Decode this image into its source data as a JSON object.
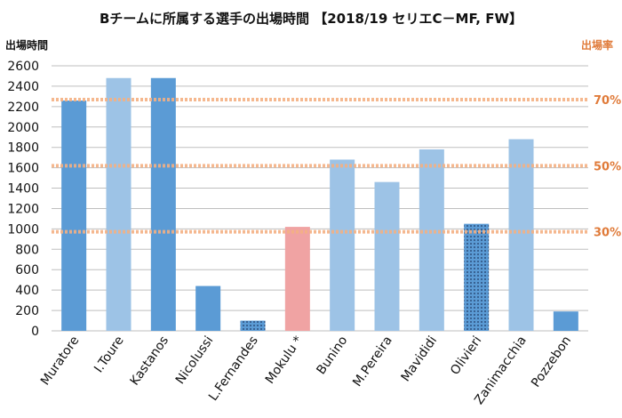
{
  "chart_data": {
    "type": "bar",
    "title": "Bチームに所属する選手の出場時間 【2018/19 セリエC－MF, FW】",
    "ylabel": "出場時間",
    "y2label": "出場率",
    "ylim": [
      0,
      2600
    ],
    "ytick_labels": [
      "0",
      "200",
      "400",
      "600",
      "800",
      "1000",
      "1200",
      "1400",
      "1600",
      "1800",
      "2000",
      "2200",
      "2400",
      "2600"
    ],
    "categories": [
      "Muratore",
      "I.Toure",
      "Kastanos",
      "Nicolussi",
      "L.Fernandes",
      "Mokulu *",
      "Bunino",
      "M.Pereira",
      "Mavididi",
      "Olivieri",
      "Zanimacchia",
      "Pozzebon"
    ],
    "values": [
      2260,
      2480,
      2480,
      440,
      100,
      1020,
      1680,
      1460,
      1780,
      1050,
      1880,
      190
    ],
    "bar_styles": [
      "dark",
      "light",
      "dark",
      "dark",
      "dotted",
      "pink",
      "light",
      "light",
      "light",
      "dotted",
      "light",
      "dark"
    ],
    "reference_lines": [
      {
        "label": "70%",
        "value": 2268
      },
      {
        "label": "50%",
        "value": 1620
      },
      {
        "label": "30%",
        "value": 972
      }
    ],
    "colors": {
      "dark": "#5b9bd5",
      "light": "#9dc3e6",
      "pink": "#f0a3a3",
      "dotted_bg": "#5b9bd5",
      "dotted_dot": "#1f3864",
      "ref_line": "#f4b183",
      "ref_label": "#e07b3a",
      "grid": "#bfbfbf"
    }
  }
}
